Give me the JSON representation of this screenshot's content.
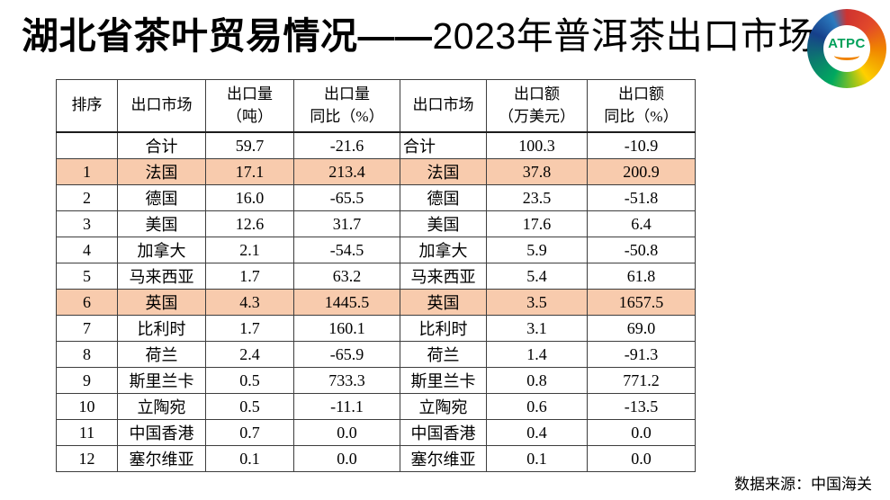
{
  "title": {
    "bold_part": "湖北省茶叶贸易情况——",
    "regular_part": "2023年普洱茶出口市场"
  },
  "logo": {
    "text": "ATPC",
    "text_color": "#00a05a",
    "swirl_colors": [
      "#cf3330",
      "#e2492a",
      "#f08300",
      "#f6b200",
      "#8fc31f",
      "#00a95f",
      "#0c7b6e",
      "#17408b",
      "#2b7bbf"
    ]
  },
  "table": {
    "headers": [
      "排序",
      "出口市场",
      "出口量\n（吨）",
      "出口量\n同比（%）",
      "出口市场",
      "出口额\n（万美元）",
      "出口额\n同比（%）"
    ],
    "rows": [
      {
        "rank": "",
        "market": "合计",
        "volume": "59.7",
        "volume_yoy": "-21.6",
        "market2": "合计",
        "value": "100.3",
        "value_yoy": "-10.9",
        "highlight": false,
        "market2_align": "left"
      },
      {
        "rank": "1",
        "market": "法国",
        "volume": "17.1",
        "volume_yoy": "213.4",
        "market2": "法国",
        "value": "37.8",
        "value_yoy": "200.9",
        "highlight": true
      },
      {
        "rank": "2",
        "market": "德国",
        "volume": "16.0",
        "volume_yoy": "-65.5",
        "market2": "德国",
        "value": "23.5",
        "value_yoy": "-51.8",
        "highlight": false
      },
      {
        "rank": "3",
        "market": "美国",
        "volume": "12.6",
        "volume_yoy": "31.7",
        "market2": "美国",
        "value": "17.6",
        "value_yoy": "6.4",
        "highlight": false
      },
      {
        "rank": "4",
        "market": "加拿大",
        "volume": "2.1",
        "volume_yoy": "-54.5",
        "market2": "加拿大",
        "value": "5.9",
        "value_yoy": "-50.8",
        "highlight": false
      },
      {
        "rank": "5",
        "market": "马来西亚",
        "volume": "1.7",
        "volume_yoy": "63.2",
        "market2": "马来西亚",
        "value": "5.4",
        "value_yoy": "61.8",
        "highlight": false
      },
      {
        "rank": "6",
        "market": "英国",
        "volume": "4.3",
        "volume_yoy": "1445.5",
        "market2": "英国",
        "value": "3.5",
        "value_yoy": "1657.5",
        "highlight": true
      },
      {
        "rank": "7",
        "market": "比利时",
        "volume": "1.7",
        "volume_yoy": "160.1",
        "market2": "比利时",
        "value": "3.1",
        "value_yoy": "69.0",
        "highlight": false
      },
      {
        "rank": "8",
        "market": "荷兰",
        "volume": "2.4",
        "volume_yoy": "-65.9",
        "market2": "荷兰",
        "value": "1.4",
        "value_yoy": "-91.3",
        "highlight": false
      },
      {
        "rank": "9",
        "market": "斯里兰卡",
        "volume": "0.5",
        "volume_yoy": "733.3",
        "market2": "斯里兰卡",
        "value": "0.8",
        "value_yoy": "771.2",
        "highlight": false
      },
      {
        "rank": "10",
        "market": "立陶宛",
        "volume": "0.5",
        "volume_yoy": "-11.1",
        "market2": "立陶宛",
        "value": "0.6",
        "value_yoy": "-13.5",
        "highlight": false
      },
      {
        "rank": "11",
        "market": "中国香港",
        "volume": "0.7",
        "volume_yoy": "0.0",
        "market2": "中国香港",
        "value": "0.4",
        "value_yoy": "0.0",
        "highlight": false
      },
      {
        "rank": "12",
        "market": "塞尔维亚",
        "volume": "0.1",
        "volume_yoy": "0.0",
        "market2": "塞尔维亚",
        "value": "0.1",
        "value_yoy": "0.0",
        "highlight": false
      }
    ]
  },
  "source": "数据来源：中国海关",
  "colors": {
    "highlight_row": "#F8CBAD",
    "border": "#3d3d3d",
    "text": "#000000"
  }
}
